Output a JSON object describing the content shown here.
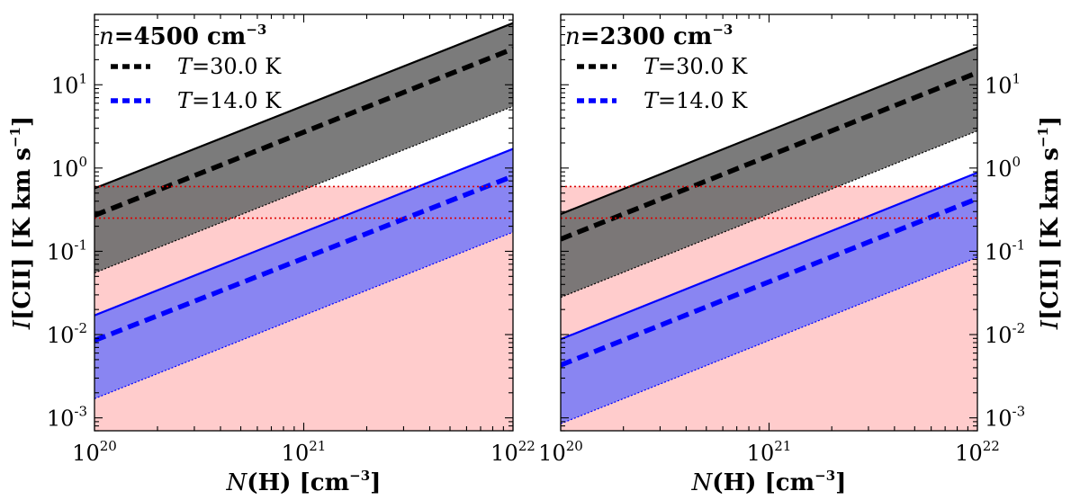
{
  "figure": {
    "ylabel": "I[CII] [K km s^-1]",
    "xlabel": "N(H) [cm^-3]",
    "observed_band_color": "#ff9999",
    "observed_line_color": "#dd0000"
  },
  "chart_data": [
    {
      "type": "area",
      "title": "n=4500 cm^-3",
      "title_value": "4500",
      "xlabel": "N(H) [cm^-3]",
      "ylabel": "I[CII] [K km s^-1]",
      "xscale": "log",
      "yscale": "log",
      "xlim": [
        1e+20,
        1e+22
      ],
      "ylim": [
        0.0007,
        70
      ],
      "x_ticks": [
        {
          "base": "10",
          "exp": "20",
          "value": 1e+20
        },
        {
          "base": "10",
          "exp": "21",
          "value": 1e+21
        },
        {
          "base": "10",
          "exp": "22",
          "value": 1e+22
        }
      ],
      "y_ticks": [
        {
          "base": "10",
          "exp": "-3",
          "value": 0.001
        },
        {
          "base": "10",
          "exp": "-2",
          "value": 0.01
        },
        {
          "base": "10",
          "exp": "-1",
          "value": 0.1
        },
        {
          "base": "10",
          "exp": "0",
          "value": 1
        },
        {
          "base": "10",
          "exp": "1",
          "value": 10
        }
      ],
      "y_axis_side": "left",
      "legend_position": "top-left",
      "observed_band": {
        "lower": 0.25,
        "upper": 0.6
      },
      "series": [
        {
          "name": "T=30.0 K",
          "label_var": "T",
          "label_val": "=30.0 K",
          "color": "#000000",
          "fill": "#707070",
          "x": [
            1e+20,
            1e+22
          ],
          "mid": [
            0.27,
            27
          ],
          "upper": [
            0.57,
            55
          ],
          "lower": [
            0.055,
            5.5
          ]
        },
        {
          "name": "T=14.0 K",
          "label_var": "T",
          "label_val": "=14.0 K",
          "color": "#0000ff",
          "fill": "#7f7ff5",
          "x": [
            1e+20,
            1e+22
          ],
          "mid": [
            0.0085,
            0.8
          ],
          "upper": [
            0.017,
            1.7
          ],
          "lower": [
            0.0017,
            0.17
          ]
        }
      ]
    },
    {
      "type": "area",
      "title": "n=2300 cm^-3",
      "title_value": "2300",
      "xlabel": "N(H) [cm^-3]",
      "ylabel": "I[CII] [K km s^-1]",
      "xscale": "log",
      "yscale": "log",
      "xlim": [
        1e+20,
        1e+22
      ],
      "ylim": [
        0.0007,
        70
      ],
      "x_ticks": [
        {
          "base": "10",
          "exp": "20",
          "value": 1e+20
        },
        {
          "base": "10",
          "exp": "21",
          "value": 1e+21
        },
        {
          "base": "10",
          "exp": "22",
          "value": 1e+22
        }
      ],
      "y_ticks": [
        {
          "base": "10",
          "exp": "-3",
          "value": 0.001
        },
        {
          "base": "10",
          "exp": "-2",
          "value": 0.01
        },
        {
          "base": "10",
          "exp": "-1",
          "value": 0.1
        },
        {
          "base": "10",
          "exp": "0",
          "value": 1
        },
        {
          "base": "10",
          "exp": "1",
          "value": 10
        }
      ],
      "y_axis_side": "right",
      "legend_position": "top-left",
      "observed_band": {
        "lower": 0.25,
        "upper": 0.6
      },
      "series": [
        {
          "name": "T=30.0 K",
          "label_var": "T",
          "label_val": "=30.0 K",
          "color": "#000000",
          "fill": "#707070",
          "x": [
            1e+20,
            1e+22
          ],
          "mid": [
            0.14,
            14
          ],
          "upper": [
            0.28,
            28
          ],
          "lower": [
            0.028,
            2.8
          ]
        },
        {
          "name": "T=14.0 K",
          "label_var": "T",
          "label_val": "=14.0 K",
          "color": "#0000ff",
          "fill": "#7f7ff5",
          "x": [
            1e+20,
            1e+22
          ],
          "mid": [
            0.0043,
            0.43
          ],
          "upper": [
            0.0088,
            0.88
          ],
          "lower": [
            0.00085,
            0.085
          ]
        }
      ]
    }
  ]
}
